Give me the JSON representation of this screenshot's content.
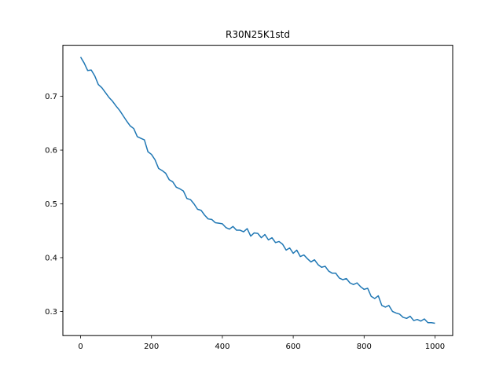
{
  "chart_data": {
    "type": "line",
    "title": "R30N25K1std",
    "xlabel": "",
    "ylabel": "",
    "xlim": [
      -50,
      1050
    ],
    "ylim": [
      0.255,
      0.795
    ],
    "xticks": [
      0,
      200,
      400,
      600,
      800,
      1000
    ],
    "yticks": [
      0.3,
      0.4,
      0.5,
      0.6,
      0.7
    ],
    "xtick_labels": [
      "0",
      "200",
      "400",
      "600",
      "800",
      "1000"
    ],
    "ytick_labels": [
      "0.3",
      "0.4",
      "0.5",
      "0.6",
      "0.7"
    ],
    "grid": false,
    "legend": "none",
    "series": [
      {
        "color": "#1f77b4",
        "x": [
          0,
          10,
          20,
          30,
          40,
          50,
          60,
          70,
          80,
          90,
          100,
          110,
          120,
          130,
          140,
          150,
          160,
          170,
          180,
          190,
          200,
          210,
          220,
          230,
          240,
          250,
          260,
          270,
          280,
          290,
          300,
          310,
          320,
          330,
          340,
          350,
          360,
          370,
          380,
          390,
          400,
          410,
          420,
          430,
          440,
          450,
          460,
          470,
          480,
          490,
          500,
          510,
          520,
          530,
          540,
          550,
          560,
          570,
          580,
          590,
          600,
          610,
          620,
          630,
          640,
          650,
          660,
          670,
          680,
          690,
          700,
          710,
          720,
          730,
          740,
          750,
          760,
          770,
          780,
          790,
          800,
          810,
          820,
          830,
          840,
          850,
          860,
          870,
          880,
          890,
          900,
          910,
          920,
          930,
          940,
          950,
          960,
          970,
          980,
          990,
          1000
        ],
        "y": [
          0.773,
          0.762,
          0.748,
          0.749,
          0.738,
          0.722,
          0.716,
          0.707,
          0.698,
          0.691,
          0.682,
          0.674,
          0.664,
          0.654,
          0.645,
          0.64,
          0.625,
          0.622,
          0.619,
          0.597,
          0.592,
          0.582,
          0.566,
          0.562,
          0.557,
          0.545,
          0.541,
          0.531,
          0.528,
          0.524,
          0.51,
          0.508,
          0.5,
          0.49,
          0.488,
          0.479,
          0.472,
          0.471,
          0.465,
          0.464,
          0.463,
          0.456,
          0.453,
          0.458,
          0.451,
          0.451,
          0.448,
          0.454,
          0.44,
          0.446,
          0.445,
          0.437,
          0.443,
          0.433,
          0.437,
          0.428,
          0.43,
          0.425,
          0.414,
          0.418,
          0.408,
          0.414,
          0.402,
          0.405,
          0.398,
          0.392,
          0.396,
          0.387,
          0.382,
          0.384,
          0.375,
          0.371,
          0.371,
          0.362,
          0.359,
          0.361,
          0.353,
          0.35,
          0.353,
          0.346,
          0.341,
          0.343,
          0.328,
          0.324,
          0.329,
          0.311,
          0.308,
          0.311,
          0.3,
          0.297,
          0.295,
          0.289,
          0.287,
          0.291,
          0.283,
          0.285,
          0.282,
          0.286,
          0.279,
          0.279,
          0.278
        ]
      }
    ]
  }
}
